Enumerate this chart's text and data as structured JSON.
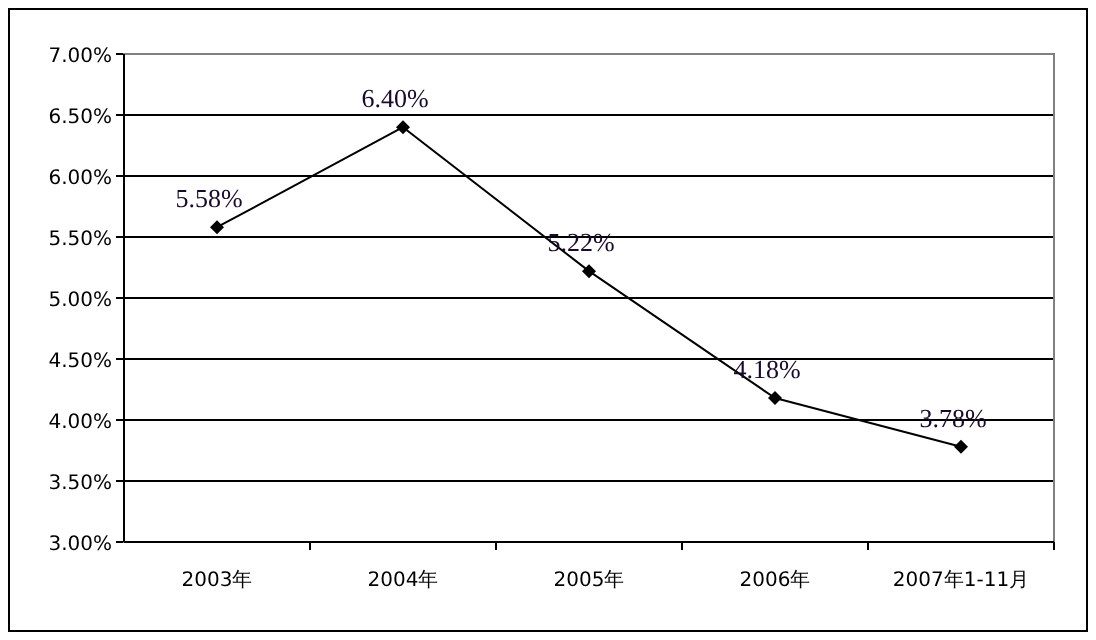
{
  "chart_data": {
    "type": "line",
    "categories": [
      "2003年",
      "2004年",
      "2005年",
      "2006年",
      "2007年1-11月"
    ],
    "values": [
      5.58,
      6.4,
      5.22,
      4.18,
      3.78
    ],
    "value_labels": [
      "5.58%",
      "6.40%",
      "5.22%",
      "4.18%",
      "3.78%"
    ],
    "color": "#000000",
    "marker": "diamond",
    "line_style": "solid",
    "grid": "y",
    "ylim": [
      3,
      7
    ],
    "yticks": [
      {
        "value": 3,
        "label": "3.00%"
      },
      {
        "value": 3.5,
        "label": "3.50%"
      },
      {
        "value": 4,
        "label": "4.00%"
      },
      {
        "value": 4.5,
        "label": "4.50%"
      },
      {
        "value": 5,
        "label": "5.00%"
      },
      {
        "value": 5.5,
        "label": "5.50%"
      },
      {
        "value": 6,
        "label": "6.00%"
      },
      {
        "value": 6.5,
        "label": "6.50%"
      },
      {
        "value": 7,
        "label": "7.00%"
      }
    ]
  }
}
